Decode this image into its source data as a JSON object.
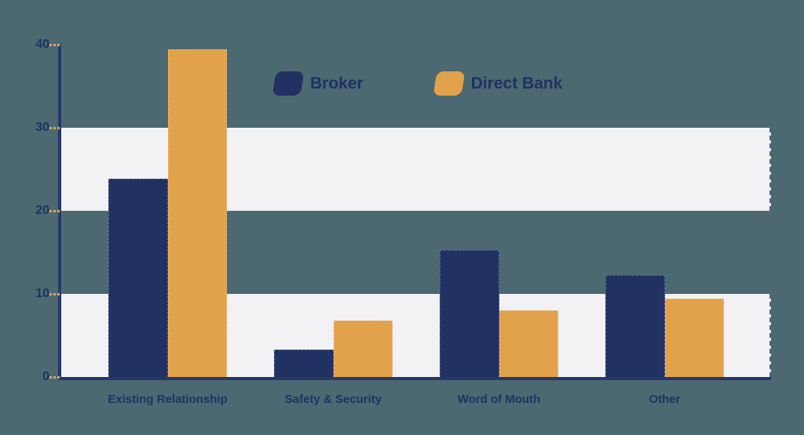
{
  "chart_data": {
    "type": "bar",
    "title": "",
    "xlabel": "",
    "ylabel": "",
    "categories": [
      "Existing Relationship",
      "Safety & Security",
      "Word of Mouth",
      "Other"
    ],
    "series": [
      {
        "name": "Broker",
        "color": "#203162",
        "values": [
          23.9,
          3.3,
          15.3,
          12.3
        ]
      },
      {
        "name": "Direct Bank",
        "color": "#E2A14B",
        "values": [
          39.4,
          6.8,
          8.0,
          9.4
        ]
      }
    ],
    "ylim": [
      0,
      40
    ],
    "yticks": [
      0,
      10,
      20,
      30,
      40
    ],
    "band_ranges": [
      [
        0,
        10
      ],
      [
        20,
        30
      ]
    ],
    "grid": "horizontal-bands",
    "legend_position": "top-center"
  },
  "colors": {
    "background": "#4C6971",
    "band": "#F2F1F4",
    "axis": "#263868",
    "tick_dash": "#E0A45C",
    "label_text": "#203162"
  }
}
